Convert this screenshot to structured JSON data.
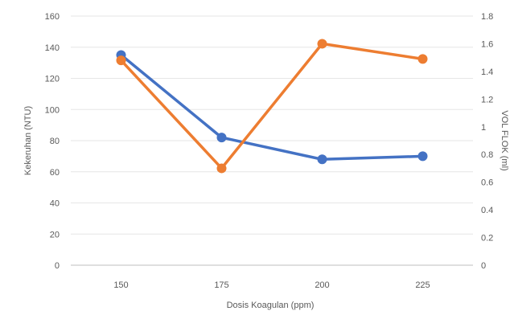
{
  "chart_data": {
    "type": "line",
    "categories": [
      "150",
      "175",
      "200",
      "225"
    ],
    "x": [
      150,
      175,
      200,
      225
    ],
    "xlabel": "Dosis Koagulan (ppm)",
    "ylabel": "Kekeruhan (NTU)",
    "y2label": "VOL FLOK (ml)",
    "ylim": [
      0,
      160
    ],
    "y_ticks": [
      0,
      20,
      40,
      60,
      80,
      100,
      120,
      140,
      160
    ],
    "y2lim": [
      0,
      1.8
    ],
    "y2_ticks": [
      "0",
      "0.2",
      "0.4",
      "0.6",
      "0.8",
      "1",
      "1.2",
      "1.4",
      "1.6",
      "1.8"
    ],
    "grid": true,
    "legend": "none",
    "series": [
      {
        "axis": "left",
        "color": "#4472c4",
        "values": [
          135,
          82,
          68,
          70
        ]
      },
      {
        "axis": "right",
        "color": "#ed7d31",
        "values": [
          1.48,
          0.7,
          1.6,
          1.49
        ]
      }
    ]
  }
}
